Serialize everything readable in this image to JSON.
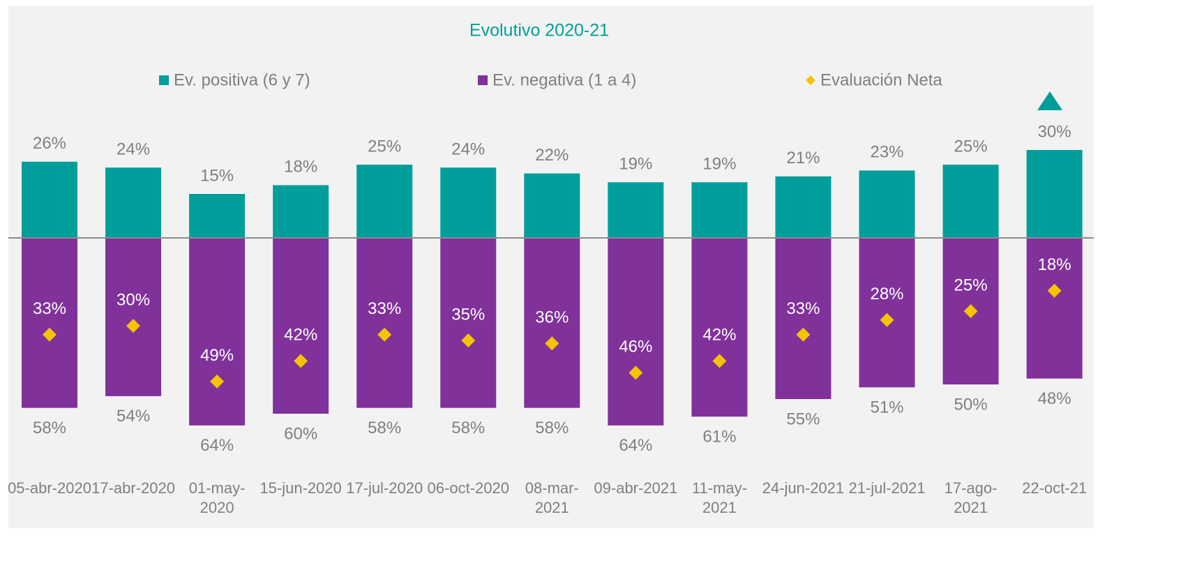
{
  "chart_data": {
    "type": "bar",
    "title": "Evolutivo 2020-21",
    "categories": [
      "05-abr-2020",
      "17-abr-2020",
      "01-may-2020",
      "15-jun-2020",
      "17-jul-2020",
      "06-oct-2020",
      "08-mar-2021",
      "09-abr-2021",
      "11-may-2021",
      "24-jun-2021",
      "21-jul-2021",
      "17-ago-2021",
      "22-oct-21"
    ],
    "ylim": [
      -70,
      40
    ],
    "series": [
      {
        "name": "Ev. positiva (6 y 7)",
        "color": "#009e9b",
        "kind": "bar",
        "values": [
          26,
          24,
          15,
          18,
          25,
          24,
          22,
          19,
          19,
          21,
          23,
          25,
          30
        ],
        "value_labels": [
          "26%",
          "24%",
          "15%",
          "18%",
          "25%",
          "24%",
          "22%",
          "19%",
          "19%",
          "21%",
          "23%",
          "25%",
          "30%"
        ]
      },
      {
        "name": "Ev. negativa (1 a 4)",
        "color": "#80319a",
        "kind": "bar",
        "values": [
          -58,
          -54,
          -64,
          -60,
          -58,
          -58,
          -58,
          -64,
          -61,
          -55,
          -51,
          -50,
          -48
        ],
        "value_labels": [
          "58%",
          "54%",
          "64%",
          "60%",
          "58%",
          "58%",
          "58%",
          "64%",
          "61%",
          "55%",
          "51%",
          "50%",
          "48%"
        ]
      },
      {
        "name": "Evaluación Neta",
        "color": "#f5c400",
        "kind": "diamond",
        "values": [
          -33,
          -30,
          -49,
          -42,
          -33,
          -35,
          -36,
          -46,
          -42,
          -33,
          -28,
          -25,
          -18
        ],
        "value_labels": [
          "33%",
          "30%",
          "49%",
          "42%",
          "33%",
          "35%",
          "36%",
          "46%",
          "42%",
          "33%",
          "28%",
          "25%",
          "18%"
        ]
      }
    ]
  }
}
